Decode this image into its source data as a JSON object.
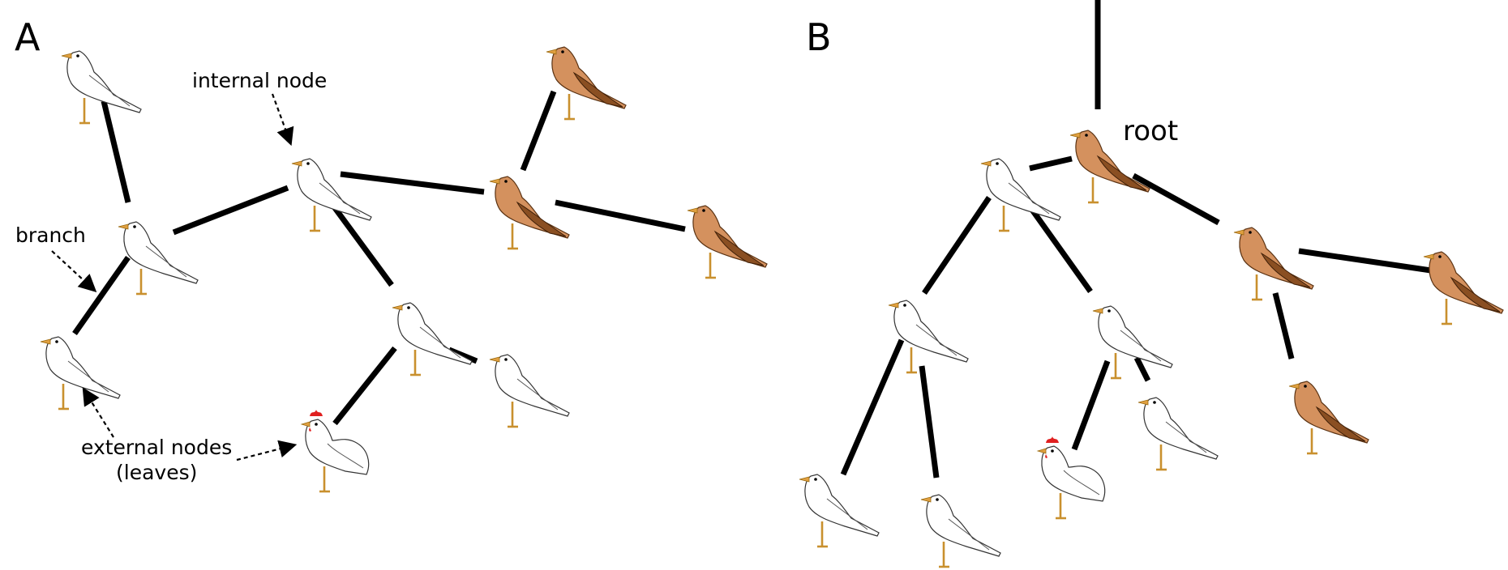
{
  "panels": [
    {
      "label": "A"
    },
    {
      "label": "B"
    }
  ],
  "annotations": {
    "internal_node": "internal node",
    "branch": "branch",
    "external_nodes_line1": "external nodes",
    "external_nodes_line2": "(leaves)",
    "root": "root"
  },
  "bird_colors": {
    "white_body": "#ffffff",
    "brown_body": "#d4915e",
    "brown_wing": "#8a4f22",
    "beak_legs": "#e0a040",
    "comb": "#e02020"
  },
  "bird_icons": [
    "white-bird-icon",
    "brown-bird-icon",
    "hen-icon"
  ]
}
